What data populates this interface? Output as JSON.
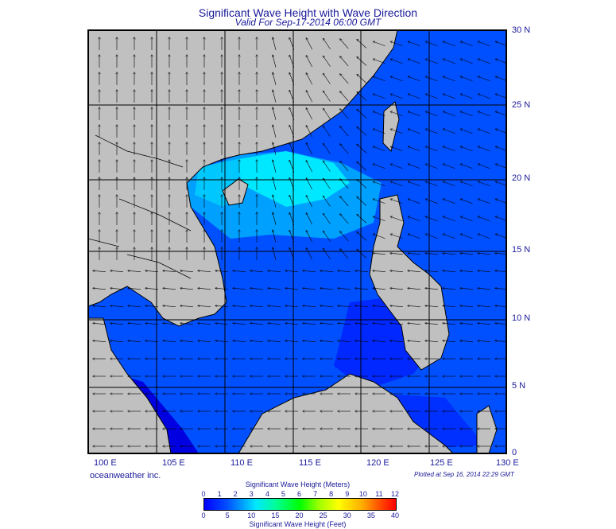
{
  "title": "Significant Wave Height with Wave Direction",
  "subtitle": "Valid For Sep-17-2014 06:00 GMT",
  "credit": "oceanweather inc.",
  "plotted": "Plotted at Sep 16, 2014 22:29 GMT",
  "lon_labels": [
    "100 E",
    "105 E",
    "110 E",
    "115 E",
    "120 E",
    "125 E",
    "130 E"
  ],
  "lat_labels": [
    "30 N",
    "25 N",
    "20 N",
    "15 N",
    "10 N",
    "5 N",
    "0"
  ],
  "lon_range": [
    100,
    130
  ],
  "lat_range": [
    0,
    30
  ],
  "colorbar": {
    "title_meters": "Significant Wave Height (Meters)",
    "title_feet": "Significant Wave Height (Feet)",
    "meters_ticks": [
      "0",
      "1",
      "2",
      "3",
      "4",
      "5",
      "6",
      "7",
      "8",
      "9",
      "10",
      "11",
      "12"
    ],
    "feet_ticks": [
      "0",
      "5",
      "10",
      "15",
      "20",
      "25",
      "30",
      "35",
      "40"
    ]
  },
  "colors": {
    "land": "#c0c0c0",
    "deep": "#0000ff",
    "mid": "#0050ff",
    "light": "#00a0ff",
    "cyan": "#00e8ff"
  }
}
